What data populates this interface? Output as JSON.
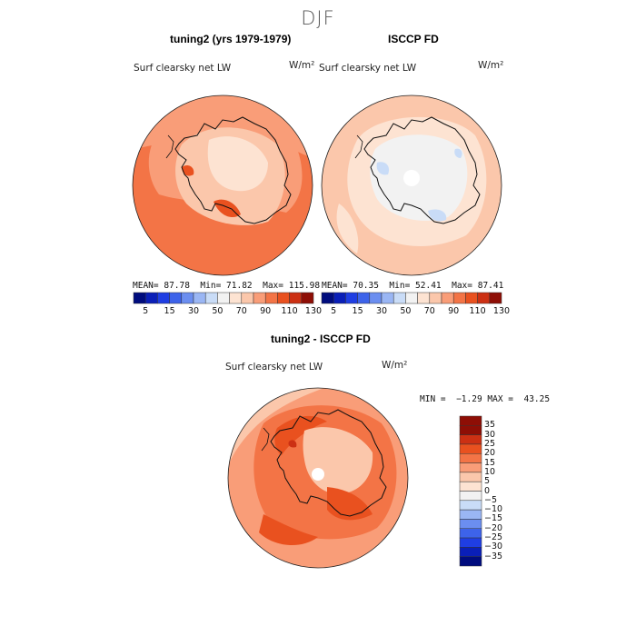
{
  "season": "DJF",
  "colors": {
    "c_neg35": "#000c7e",
    "c_neg30": "#0a1fb8",
    "c_neg25": "#1f3ee3",
    "c_neg20": "#3d63ea",
    "c_neg15": "#6b8ef0",
    "c_neg10": "#9ab6f4",
    "c_neg5": "#c9dcf7",
    "c_zero": "#f2f2f2",
    "c_5": "#fde3d2",
    "c_10": "#fbc7ab",
    "c_15": "#f99d78",
    "c_20": "#f37446",
    "c_25": "#e9511f",
    "c_30": "#cc3013",
    "c_35": "#8e0e05",
    "coast": "#111111"
  },
  "panels": [
    {
      "id": "model",
      "title": "tuning2 (yrs 1979-1979)",
      "var_label": "Surf clearsky net LW",
      "units": "W/m²",
      "stats": {
        "mean_label": "MEAN=",
        "mean": "87.78",
        "min_label": "Min=",
        "min": "71.82",
        "max_label": "Max=",
        "max": "115.98"
      }
    },
    {
      "id": "obs",
      "title": "ISCCP FD",
      "var_label": "Surf clearsky net LW",
      "units": "W/m²",
      "stats": {
        "mean_label": "MEAN=",
        "mean": "70.35",
        "min_label": "Min=",
        "min": "52.41",
        "max_label": "Max=",
        "max": "87.41"
      }
    },
    {
      "id": "diff",
      "title": "tuning2 - ISCCP FD",
      "var_label": "Surf clearsky net LW",
      "units": "W/m²",
      "stats": {
        "min_label": "MIN =",
        "min": "−1.29",
        "max_label": "MAX =",
        "max": "43.25"
      }
    }
  ],
  "chart_data": [
    {
      "type": "heatmap",
      "projection": "south-polar-stereographic",
      "title": "tuning2 (yrs 1979-1979)",
      "variable": "Surf clearsky net LW",
      "units": "W/m²",
      "mean": 87.78,
      "min": 71.82,
      "max": 115.98,
      "colorbar": {
        "orientation": "horizontal",
        "levels": [
          5,
          15,
          30,
          50,
          70,
          90,
          110,
          130
        ],
        "tick_labels": [
          "5",
          "15",
          "30",
          "50",
          "70",
          "90",
          "110",
          "130"
        ],
        "n_bins": 15
      }
    },
    {
      "type": "heatmap",
      "projection": "south-polar-stereographic",
      "title": "ISCCP FD",
      "variable": "Surf clearsky net LW",
      "units": "W/m²",
      "mean": 70.35,
      "min": 52.41,
      "max": 87.41,
      "colorbar": {
        "orientation": "horizontal",
        "levels": [
          5,
          15,
          30,
          50,
          70,
          90,
          110,
          130
        ],
        "tick_labels": [
          "5",
          "15",
          "30",
          "50",
          "70",
          "90",
          "110",
          "130"
        ],
        "n_bins": 15
      }
    },
    {
      "type": "heatmap",
      "projection": "south-polar-stereographic",
      "title": "tuning2 - ISCCP FD",
      "variable": "Surf clearsky net LW",
      "units": "W/m²",
      "min": -1.29,
      "max": 43.25,
      "colorbar": {
        "orientation": "vertical",
        "levels": [
          35,
          30,
          25,
          20,
          15,
          10,
          5,
          0,
          -5,
          -10,
          -15,
          -20,
          -25,
          -30,
          -35
        ],
        "tick_labels": [
          "35",
          "30",
          "25",
          "20",
          "15",
          "10",
          "5",
          "0",
          "−5",
          "−10",
          "−15",
          "−20",
          "−25",
          "−30",
          "−35"
        ]
      }
    }
  ]
}
